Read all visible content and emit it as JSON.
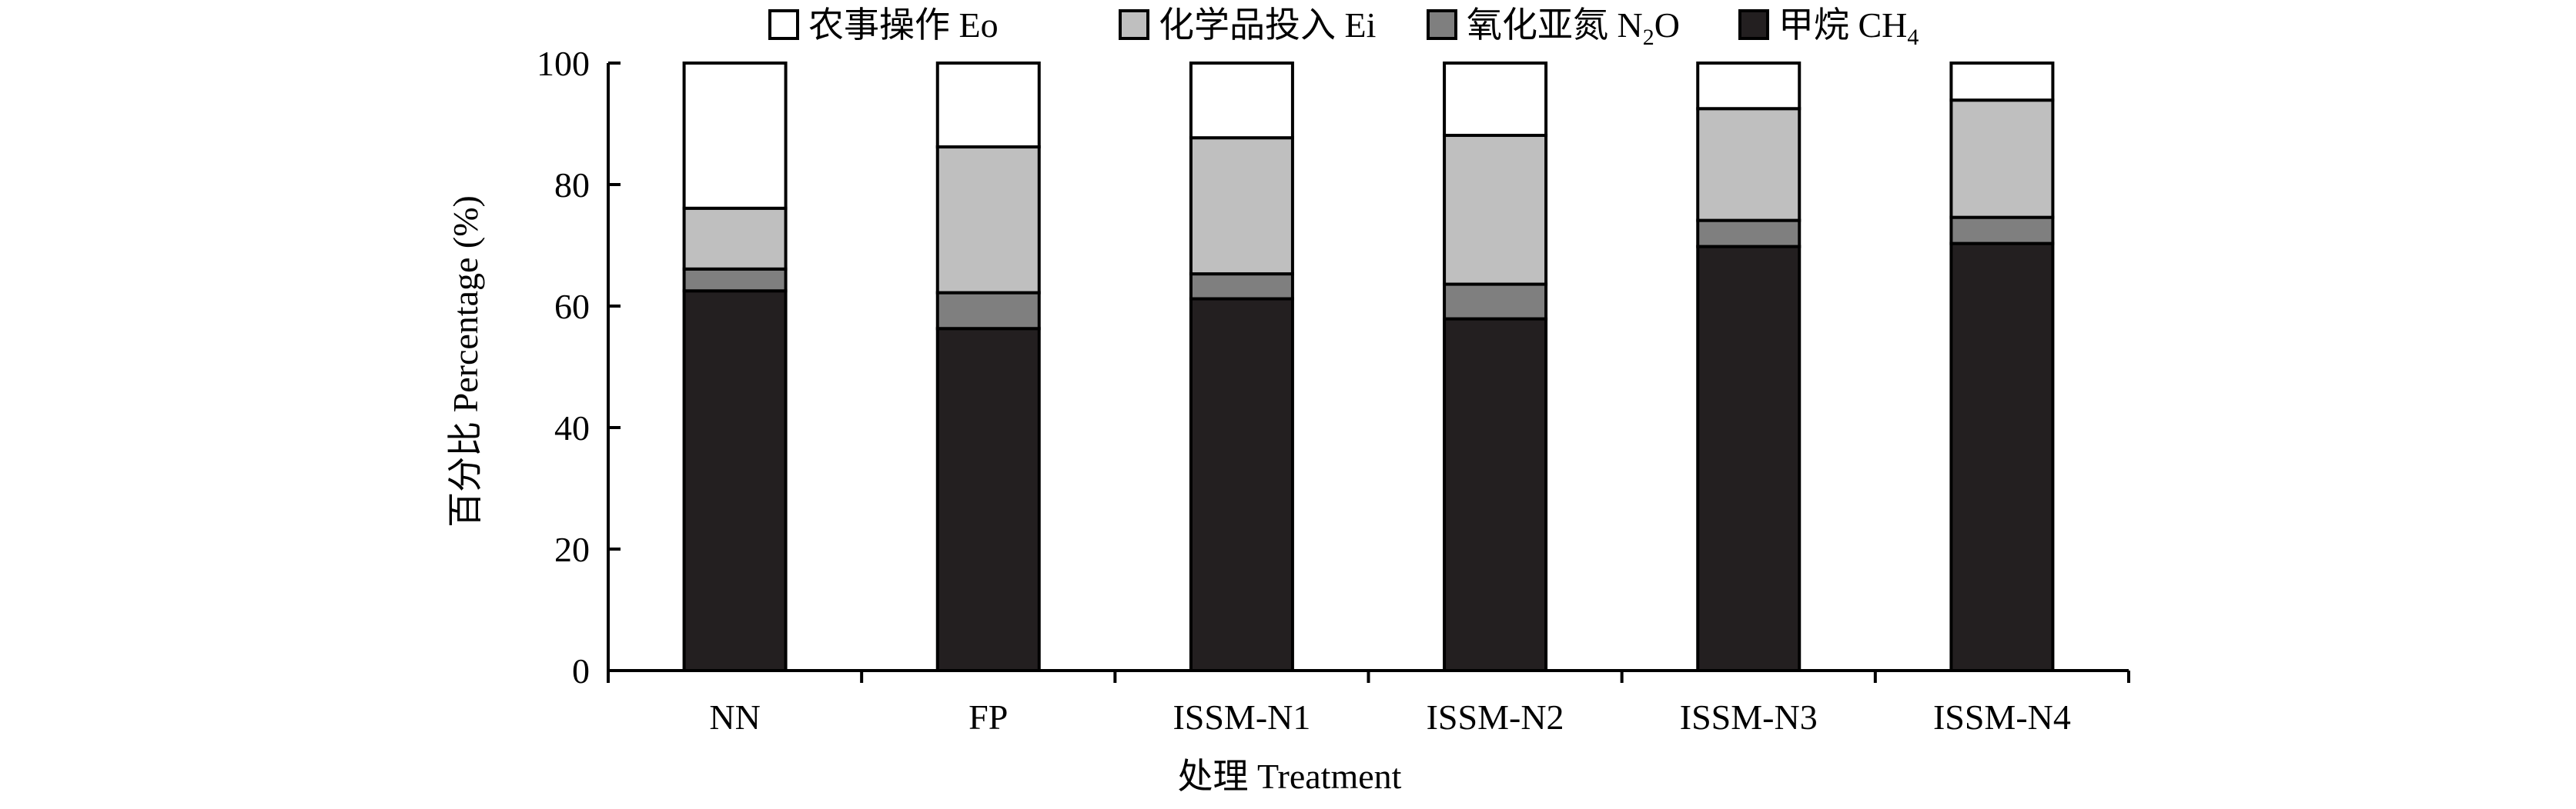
{
  "colors": {
    "agricultural_operations": "#ffffff",
    "chemical_inputs": "#bfbfbf",
    "nitrous_oxide": "#7f7f7f",
    "methane": "#231f20",
    "outline": "#000000"
  },
  "chart_data": {
    "type": "bar",
    "stacked": true,
    "title": "",
    "xlabel": "处理 Treatment",
    "ylabel": "百分比 Percentage (%)",
    "ylim": [
      0,
      100
    ],
    "yticks": [
      "0",
      "20",
      "40",
      "60",
      "80",
      "100"
    ],
    "categories": [
      "NN",
      "FP",
      "ISSM-N1",
      "ISSM-N2",
      "ISSM-N3",
      "ISSM-N4"
    ],
    "legend_position": "top",
    "series": [
      {
        "name": "甲烷 CH4",
        "label_main": "甲烷 CH",
        "label_sub": "4",
        "label_tail": "",
        "color_key": "methane",
        "values": [
          62.5,
          56.3,
          61.2,
          57.9,
          69.8,
          70.3
        ]
      },
      {
        "name": "氧化亚氮 N2O",
        "label_main": "氧化亚氮 N",
        "label_sub": "2",
        "label_tail": "O",
        "color_key": "nitrous_oxide",
        "values": [
          3.6,
          5.9,
          4.1,
          5.7,
          4.3,
          4.3
        ]
      },
      {
        "name": "化学品投入 Ei",
        "label_main": "化学品投入 Ei",
        "label_sub": "",
        "label_tail": "",
        "color_key": "chemical_inputs",
        "values": [
          10.0,
          24.0,
          22.4,
          24.5,
          18.4,
          19.3
        ]
      },
      {
        "name": "农事操作 Eo",
        "label_main": "农事操作 Eo",
        "label_sub": "",
        "label_tail": "",
        "color_key": "agricultural_operations",
        "values": [
          23.9,
          13.8,
          12.3,
          11.9,
          7.5,
          6.1
        ]
      }
    ],
    "legend_order": [
      3,
      2,
      1,
      0
    ]
  }
}
